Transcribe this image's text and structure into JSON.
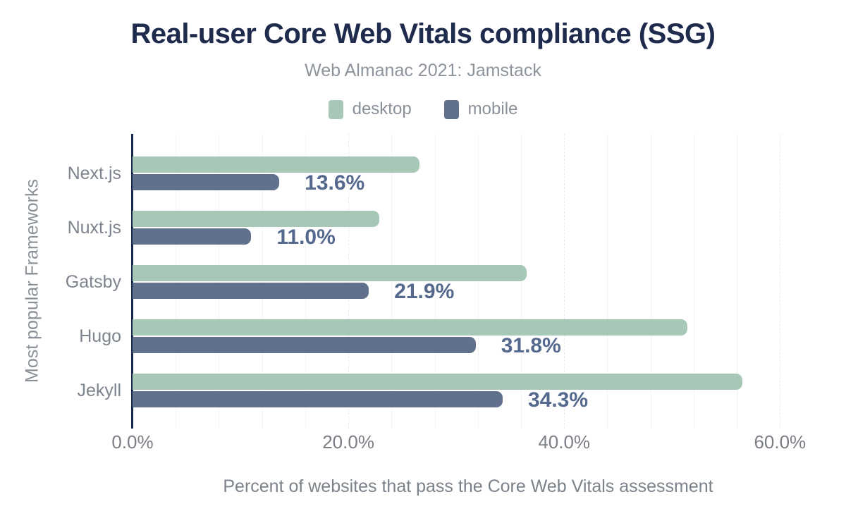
{
  "title": "Real-user Core Web Vitals compliance (SSG)",
  "subtitle": "Web Almanac 2021: Jamstack",
  "legend": {
    "items": [
      {
        "label": "desktop",
        "color": "#a8c8b7"
      },
      {
        "label": "mobile",
        "color": "#61708c"
      }
    ]
  },
  "colors": {
    "title": "#1f2b4d",
    "desktop_bar": "#a8c8b7",
    "mobile_bar": "#61708c",
    "value_label": "#55698e",
    "axis_line": "#16294b",
    "gridline_minor": "#f3f3f3",
    "gridline_major": "#e7eaee"
  },
  "chart_data": {
    "type": "bar",
    "orientation": "horizontal",
    "title": "Real-user Core Web Vitals compliance (SSG)",
    "subtitle": "Web Almanac 2021: Jamstack",
    "categories": [
      "Next.js",
      "Nuxt.js",
      "Gatsby",
      "Hugo",
      "Jekyll"
    ],
    "series": [
      {
        "name": "desktop",
        "color": "#a8c8b7",
        "values": [
          26.6,
          22.9,
          36.5,
          51.4,
          56.5
        ],
        "value_labels_shown": false
      },
      {
        "name": "mobile",
        "color": "#61708c",
        "values": [
          13.6,
          11.0,
          21.9,
          31.8,
          34.3
        ],
        "value_labels_shown": true,
        "value_labels": [
          "13.6%",
          "11.0%",
          "21.9%",
          "31.8%",
          "34.3%"
        ]
      }
    ],
    "xlabel": "Percent of websites that pass the Core Web Vitals assessment",
    "ylabel": "Most popular Frameworks",
    "x_ticks": [
      {
        "label": "0.0%",
        "value": 0
      },
      {
        "label": "20.0%",
        "value": 20
      },
      {
        "label": "40.0%",
        "value": 40
      },
      {
        "label": "60.0%",
        "value": 60
      }
    ],
    "xlim": [
      0,
      62.2
    ],
    "grid": {
      "on": true,
      "minor_step": 4,
      "major_step": 20,
      "legend_position": "top"
    }
  }
}
